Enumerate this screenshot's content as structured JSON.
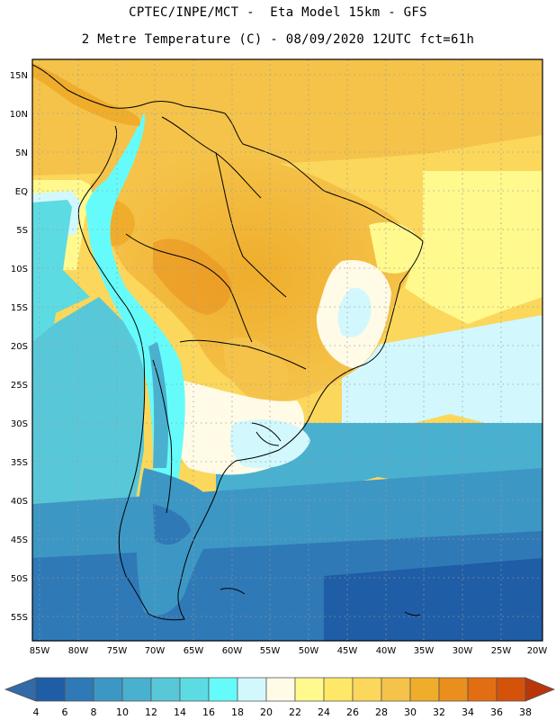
{
  "header": {
    "line1": "CPTEC/INPE/MCT -  Eta Model 15km - GFS",
    "line2": "2 Metre Temperature (C) - 08/09/2020 12UTC fct=61h"
  },
  "map": {
    "lat_labels": [
      "15N",
      "10N",
      "5N",
      "EQ",
      "5S",
      "10S",
      "15S",
      "20S",
      "25S",
      "30S",
      "35S",
      "40S",
      "45S",
      "50S",
      "55S"
    ],
    "lon_labels": [
      "85W",
      "80W",
      "75W",
      "70W",
      "65W",
      "60W",
      "55W",
      "50W",
      "45W",
      "40W",
      "35W",
      "30W",
      "25W",
      "20W"
    ],
    "projection": "lat-lon",
    "grid": true
  },
  "colorbar": {
    "labels": [
      "4",
      "6",
      "8",
      "10",
      "12",
      "14",
      "16",
      "18",
      "20",
      "22",
      "24",
      "26",
      "28",
      "30",
      "32",
      "34",
      "36",
      "38"
    ],
    "colors": [
      "#1f5da6",
      "#2f79b7",
      "#3d97c4",
      "#49b0cf",
      "#58c8d9",
      "#5ddbe2",
      "#66fbfb",
      "#d2f8fd",
      "#fffbe6",
      "#fff98e",
      "#ffe867",
      "#fbd75b",
      "#f5c34a",
      "#efad2b",
      "#ea8f1d",
      "#e36e12",
      "#d4520a",
      "#c23a05"
    ],
    "under_color": "#336aa8",
    "over_color": "#b8360a"
  }
}
